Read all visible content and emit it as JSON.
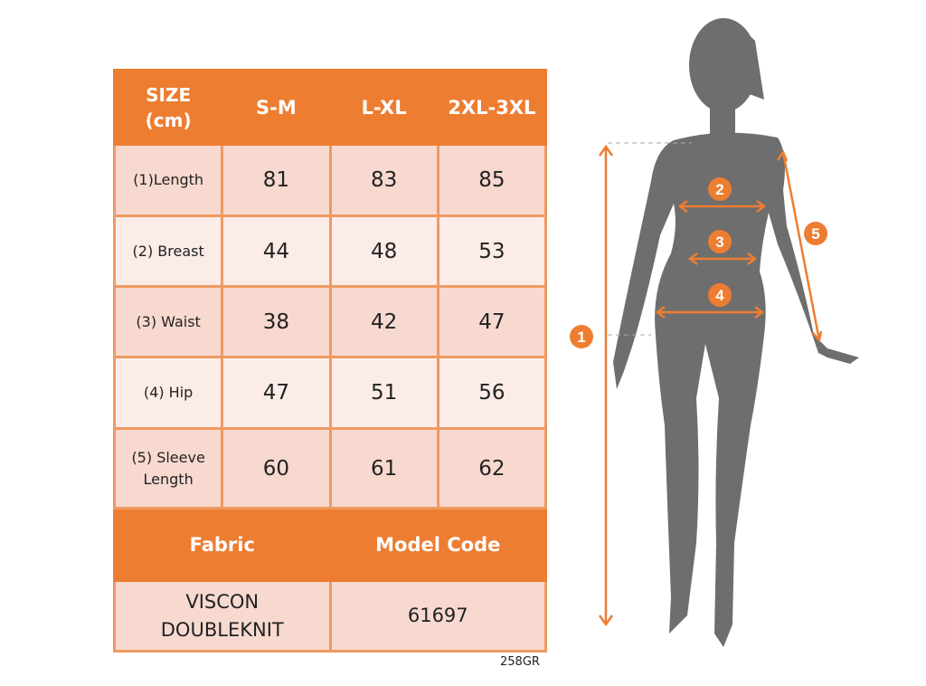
{
  "table": {
    "header": [
      "SIZE\n(cm)",
      "S-M",
      "L-XL",
      "2XL-3XL"
    ],
    "header_lines": [
      "SIZE",
      "(cm)"
    ],
    "rows": [
      {
        "label": "(1)Length",
        "values": [
          "81",
          "83",
          "85"
        ]
      },
      {
        "label": "(2) Breast",
        "values": [
          "44",
          "48",
          "53"
        ]
      },
      {
        "label": "(3) Waist",
        "values": [
          "38",
          "42",
          "47"
        ]
      },
      {
        "label": "(4) Hip",
        "values": [
          "47",
          "51",
          "56"
        ]
      },
      {
        "label_lines": [
          "(5) Sleeve",
          "Length"
        ],
        "values": [
          "60",
          "61",
          "62"
        ]
      }
    ],
    "footer_header": [
      "Fabric",
      "Model Code"
    ],
    "fabric_lines": [
      "VISCON",
      "DOUBLEKNIT"
    ],
    "model_code": "61697"
  },
  "product_code": "258GR",
  "figure": {
    "markers": [
      "1",
      "2",
      "3",
      "4",
      "5"
    ]
  },
  "colors": {
    "accent": "#ed7d31",
    "row_dark": "#f8d9cf",
    "row_light": "#fbece7",
    "silhouette": "#6e6e6e"
  }
}
